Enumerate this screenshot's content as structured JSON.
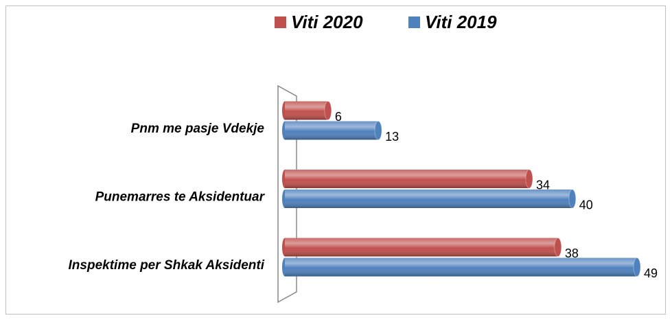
{
  "chart_data": {
    "type": "bar",
    "orientation": "horizontal",
    "categories": [
      "Pnm me pasje Vdekje",
      "Punemarres te Aksidentuar",
      "Inspektime per Shkak Aksidenti"
    ],
    "series": [
      {
        "name": "Viti 2020",
        "color": "#c0504d",
        "values": [
          6,
          34,
          38
        ]
      },
      {
        "name": "Viti 2019",
        "color": "#4f81bd",
        "values": [
          13,
          40,
          49
        ]
      }
    ],
    "legend": "top"
  }
}
